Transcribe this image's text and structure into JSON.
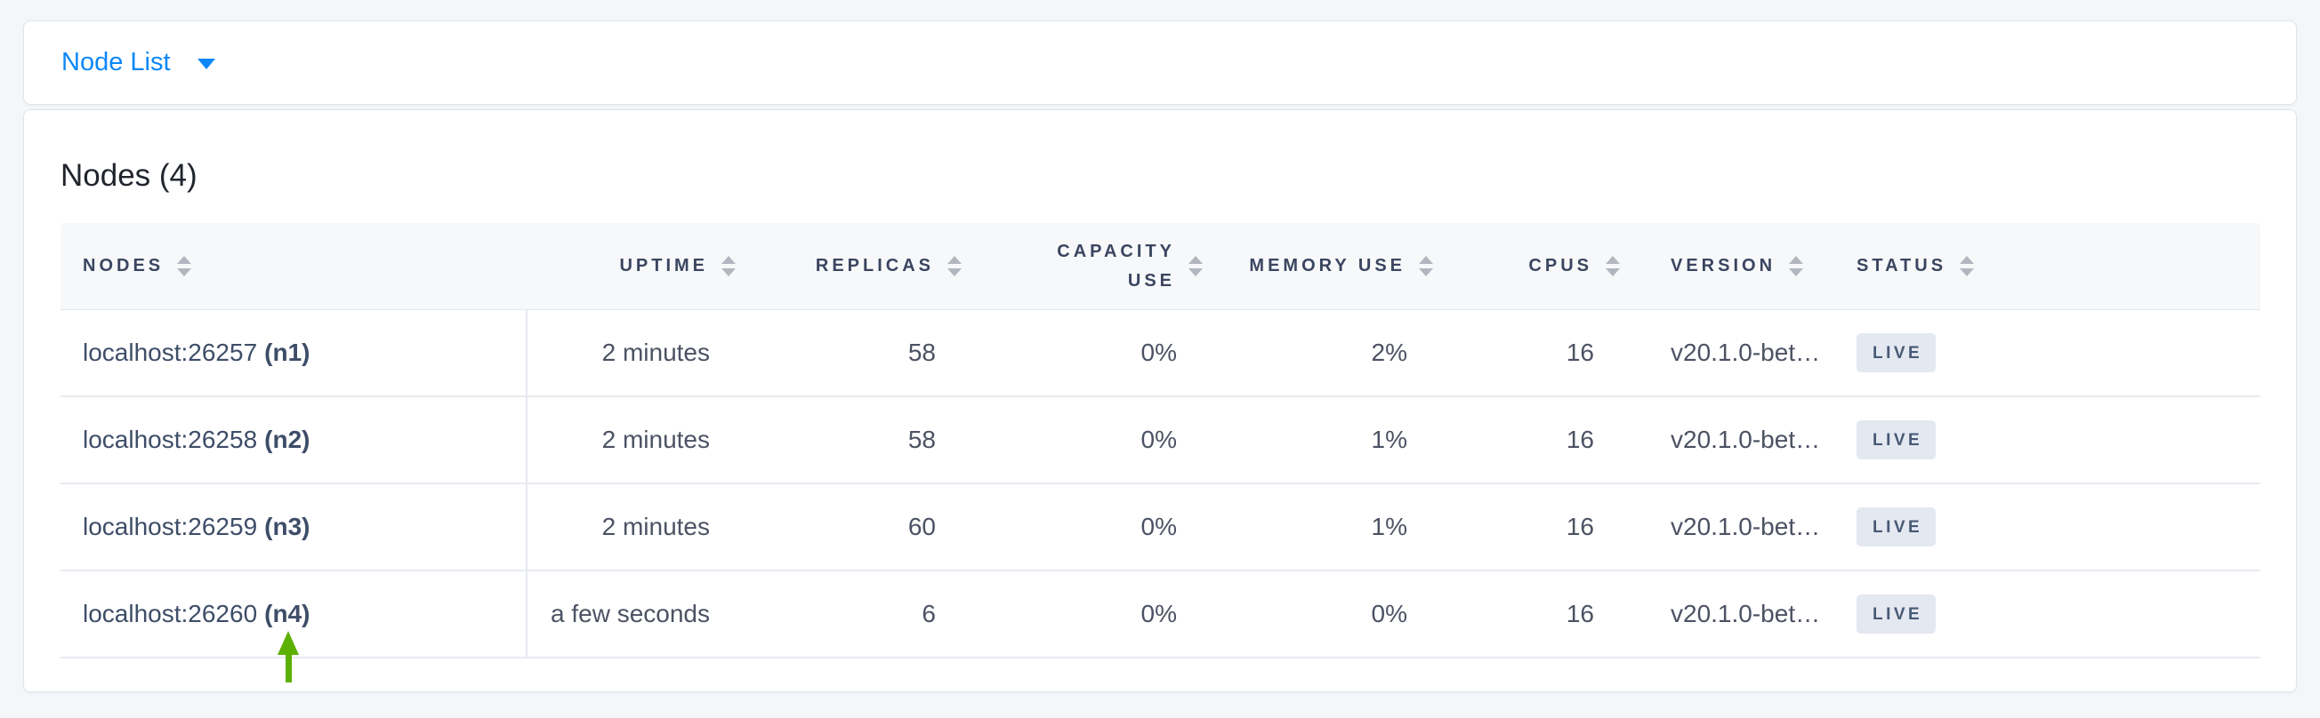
{
  "nav": {
    "dropdown_label": "Node List"
  },
  "panel": {
    "title": "Nodes (4)"
  },
  "table": {
    "columns": [
      {
        "label": "NODES"
      },
      {
        "label": "UPTIME"
      },
      {
        "label": "REPLICAS"
      },
      {
        "label": "CAPACITY USE"
      },
      {
        "label": "MEMORY USE"
      },
      {
        "label": "CPUS"
      },
      {
        "label": "VERSION"
      },
      {
        "label": "STATUS"
      }
    ],
    "rows": [
      {
        "node": "localhost:26257",
        "id": "(n1)",
        "uptime": "2 minutes",
        "replicas": "58",
        "capacity_use": "0%",
        "memory_use": "2%",
        "cpus": "16",
        "version": "v20.1.0-bet…",
        "status": "LIVE"
      },
      {
        "node": "localhost:26258",
        "id": "(n2)",
        "uptime": "2 minutes",
        "replicas": "58",
        "capacity_use": "0%",
        "memory_use": "1%",
        "cpus": "16",
        "version": "v20.1.0-bet…",
        "status": "LIVE"
      },
      {
        "node": "localhost:26259",
        "id": "(n3)",
        "uptime": "2 minutes",
        "replicas": "60",
        "capacity_use": "0%",
        "memory_use": "1%",
        "cpus": "16",
        "version": "v20.1.0-bet…",
        "status": "LIVE"
      },
      {
        "node": "localhost:26260",
        "id": "(n4)",
        "uptime": "a few seconds",
        "replicas": "6",
        "capacity_use": "0%",
        "memory_use": "0%",
        "cpus": "16",
        "version": "v20.1.0-bet…",
        "status": "LIVE"
      }
    ]
  },
  "annotation": {
    "arrow_points_to": "localhost:26260 (n4)",
    "arrow_color": "#5cb000"
  },
  "colors": {
    "page_bg": "#f4f6f9",
    "accent_blue": "#0b87f8",
    "header_text": "#3a4560",
    "badge_bg": "#e4e8f1",
    "badge_text": "#475974",
    "row_border": "#e7eaf0"
  }
}
